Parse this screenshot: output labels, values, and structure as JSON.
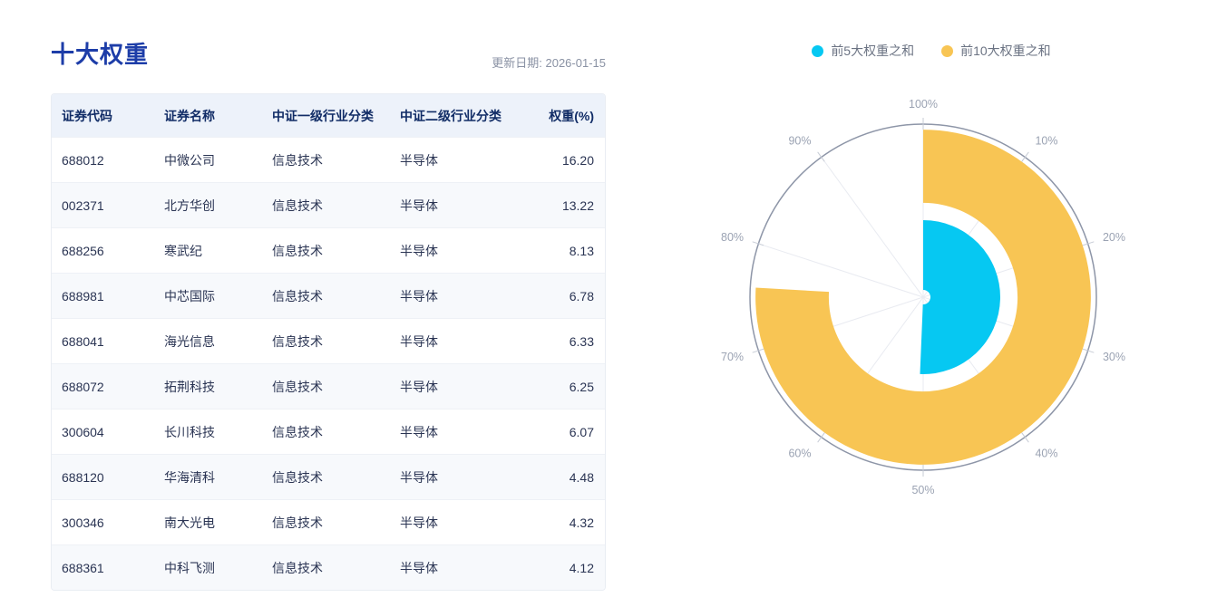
{
  "page": {
    "title": "十大权重",
    "update_date": "更新日期: 2026-01-15"
  },
  "table": {
    "columns": [
      "证券代码",
      "证券名称",
      "中证一级行业分类",
      "中证二级行业分类",
      "权重(%)"
    ],
    "rows": [
      [
        "688012",
        "中微公司",
        "信息技术",
        "半导体",
        "16.20"
      ],
      [
        "002371",
        "北方华创",
        "信息技术",
        "半导体",
        "13.22"
      ],
      [
        "688256",
        "寒武纪",
        "信息技术",
        "半导体",
        "8.13"
      ],
      [
        "688981",
        "中芯国际",
        "信息技术",
        "半导体",
        "6.78"
      ],
      [
        "688041",
        "海光信息",
        "信息技术",
        "半导体",
        "6.33"
      ],
      [
        "688072",
        "拓荆科技",
        "信息技术",
        "半导体",
        "6.25"
      ],
      [
        "300604",
        "长川科技",
        "信息技术",
        "半导体",
        "6.07"
      ],
      [
        "688120",
        "华海清科",
        "信息技术",
        "半导体",
        "4.48"
      ],
      [
        "300346",
        "南大光电",
        "信息技术",
        "半导体",
        "4.32"
      ],
      [
        "688361",
        "中科飞测",
        "信息技术",
        "半导体",
        "4.12"
      ]
    ]
  },
  "chart_data": {
    "type": "polar-ring",
    "title": "",
    "max": 100,
    "tick_step": 10,
    "start": "top",
    "direction": "clockwise",
    "angle_tick_labels": [
      "100%",
      "10%",
      "20%",
      "30%",
      "40%",
      "50%",
      "60%",
      "70%",
      "80%",
      "90%"
    ],
    "legend": [
      {
        "label": "前5大权重之和",
        "color": "#06c8f2"
      },
      {
        "label": "前10大权重之和",
        "color": "#f8c554"
      }
    ],
    "series": [
      {
        "name": "前5大权重之和",
        "value": 50.66,
        "color": "#06c8f2",
        "inner_ratio": 0.042,
        "outer_ratio": 0.445
      },
      {
        "name": "前10大权重之和",
        "value": 75.9,
        "color": "#f8c554",
        "inner_ratio": 0.545,
        "outer_ratio": 0.968
      }
    ],
    "axis_circle_color": "#8e96a8",
    "grid_line_color": "#e9ebf1",
    "tick_mark_color": "#c7ccd6",
    "tick_label_color": "#9ba3b3"
  }
}
